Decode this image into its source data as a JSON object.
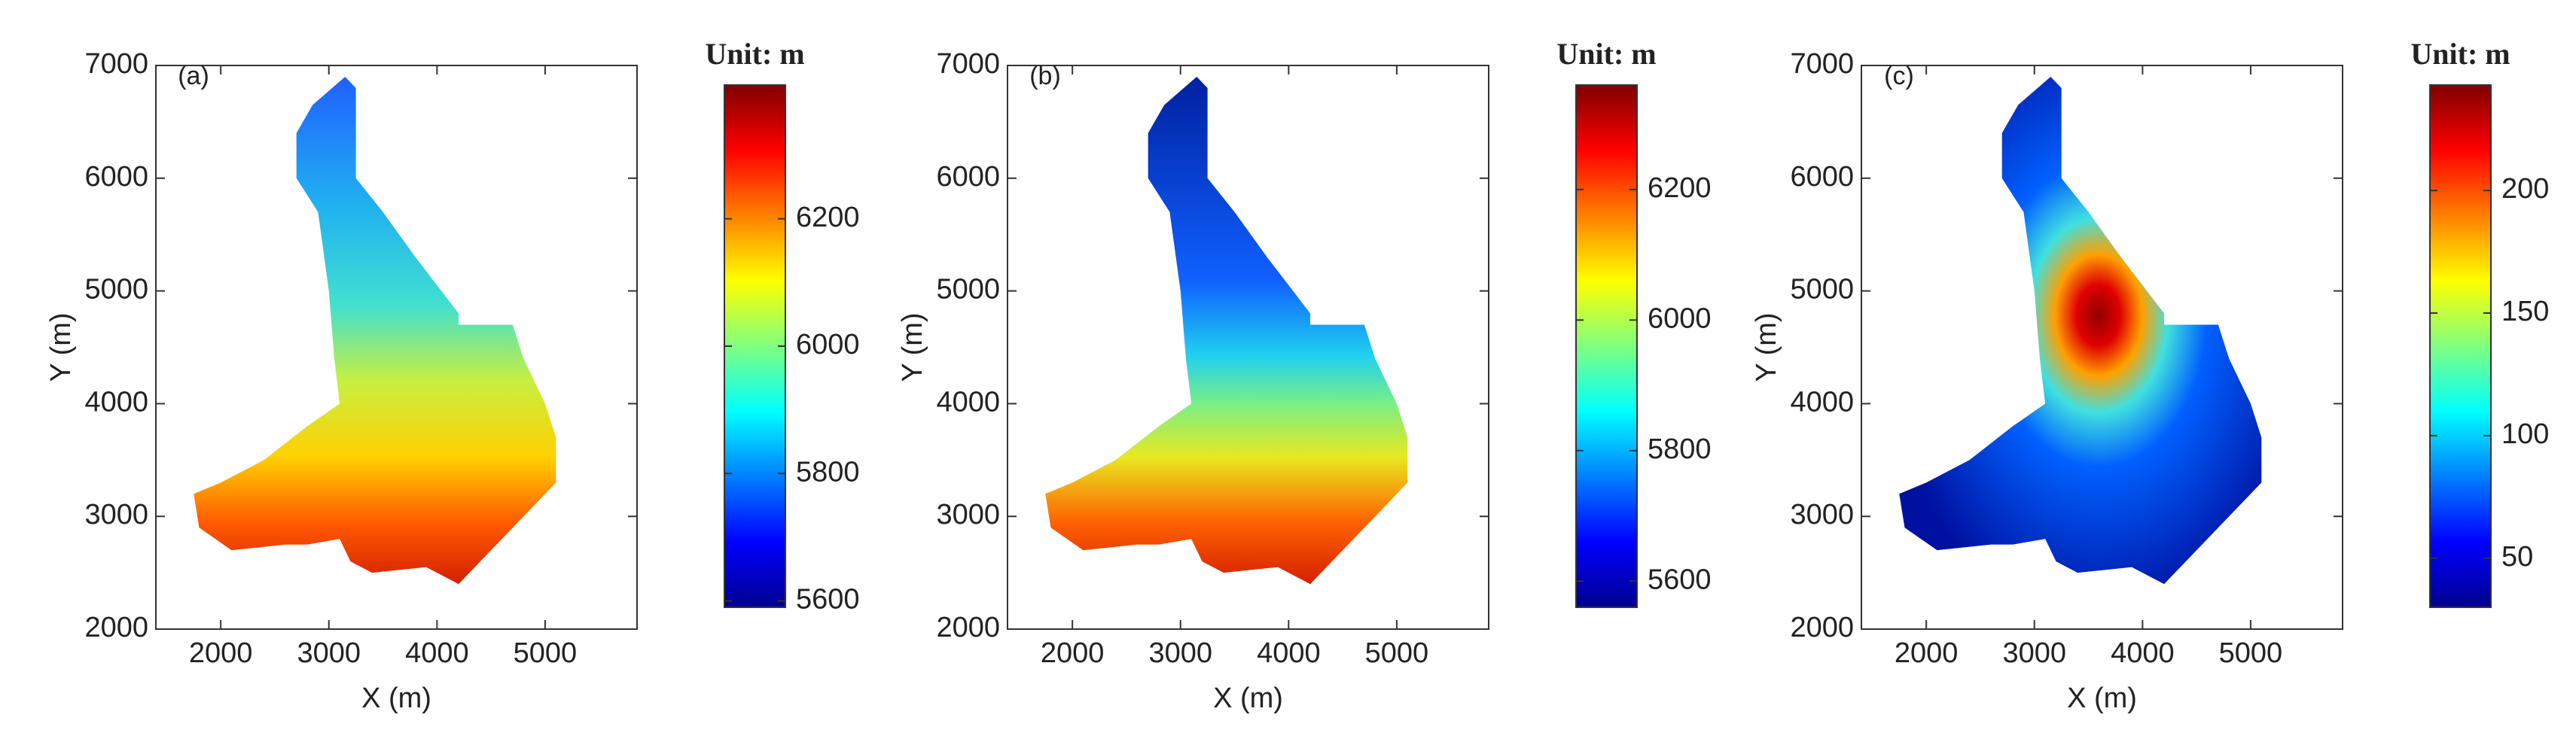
{
  "chart_data": [
    {
      "type": "heatmap",
      "panel_label": "(a)",
      "xlabel": "X (m)",
      "ylabel": "Y (m)",
      "xlim": [
        1400,
        5850
      ],
      "xticks": [
        2000,
        3000,
        4000,
        5000
      ],
      "ylim": [
        2000,
        7000
      ],
      "yticks": [
        2000,
        3000,
        4000,
        5000,
        6000,
        7000
      ],
      "colorbar_title": "Unit: m",
      "clim": [
        5590,
        6410
      ],
      "cticks": [
        5600,
        5800,
        6000,
        6200
      ],
      "colormap": "jet"
    },
    {
      "type": "heatmap",
      "panel_label": "(b)",
      "xlabel": "X (m)",
      "ylabel": "Y (m)",
      "xlim": [
        1400,
        5850
      ],
      "xticks": [
        2000,
        3000,
        4000,
        5000
      ],
      "ylim": [
        2000,
        7000
      ],
      "yticks": [
        2000,
        3000,
        4000,
        5000,
        6000,
        7000
      ],
      "colorbar_title": "Unit: m",
      "clim": [
        5560,
        6360
      ],
      "cticks": [
        5600,
        5800,
        6000,
        6200
      ],
      "colormap": "jet"
    },
    {
      "type": "heatmap",
      "panel_label": "(c)",
      "xlabel": "X (m)",
      "ylabel": "Y (m)",
      "xlim": [
        1400,
        5850
      ],
      "xticks": [
        2000,
        3000,
        4000,
        5000
      ],
      "ylim": [
        2000,
        7000
      ],
      "yticks": [
        2000,
        3000,
        4000,
        5000,
        6000,
        7000
      ],
      "colorbar_title": "Unit: m",
      "clim": [
        30,
        243
      ],
      "cticks": [
        50,
        100,
        150,
        200
      ],
      "colormap": "jet"
    }
  ]
}
